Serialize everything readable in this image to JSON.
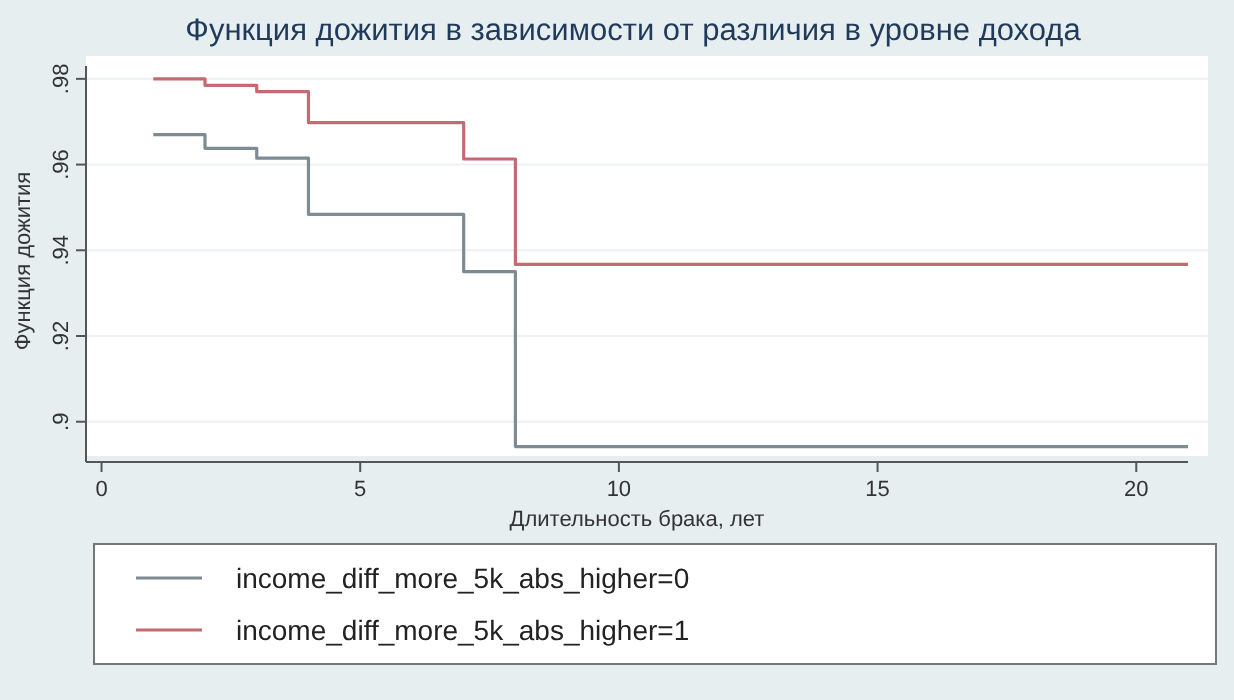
{
  "chart_data": {
    "type": "step",
    "title": "Функция дожития в зависимости от различия в уровне дохода",
    "xlabel": "Длительность брака, лет",
    "ylabel": "Функция дожития",
    "xlim": [
      -0.3,
      21
    ],
    "xticks": [
      0,
      5,
      10,
      15,
      20
    ],
    "ylim": [
      0.892,
      0.983
    ],
    "yticks": [
      {
        "value": 0.9,
        "label": ".9"
      },
      {
        "value": 0.92,
        "label": ".92"
      },
      {
        "value": 0.94,
        "label": ".94"
      },
      {
        "value": 0.96,
        "label": ".96"
      },
      {
        "value": 0.98,
        "label": ".98"
      }
    ],
    "grid": "y",
    "legend": "bottom",
    "line_style": "solid",
    "marker": "none",
    "series": [
      {
        "name": "income_diff_more_5k_abs_higher=0",
        "color": "#7d8c92",
        "x": [
          1,
          2,
          3,
          4,
          7,
          8,
          21
        ],
        "values": [
          0.967,
          0.9638,
          0.9615,
          0.9484,
          0.935,
          0.8942,
          0.8942
        ]
      },
      {
        "name": "income_diff_more_5k_abs_higher=1",
        "color": "#c46a72",
        "x": [
          1,
          2,
          3,
          4,
          7,
          8,
          21
        ],
        "values": [
          0.98,
          0.9785,
          0.977,
          0.9698,
          0.9613,
          0.9367,
          0.9367
        ]
      }
    ]
  }
}
